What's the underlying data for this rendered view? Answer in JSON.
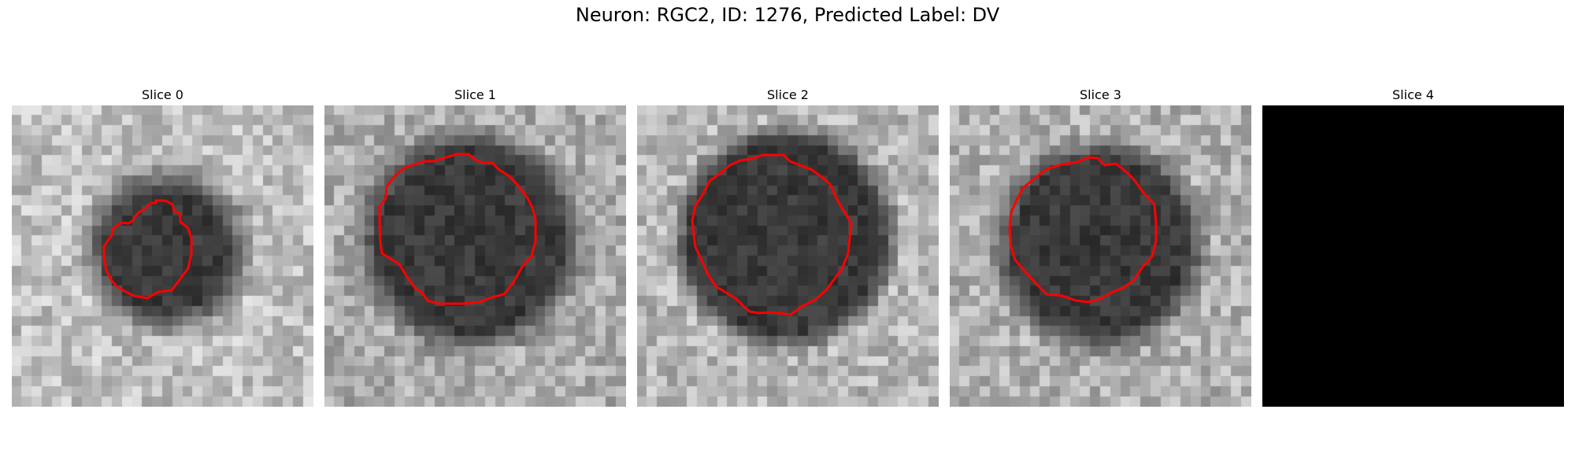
{
  "figure": {
    "title": "Neuron: RGC2, ID: 1276, Predicted Label: DV"
  },
  "panels": [
    {
      "title": "Slice 0",
      "image": "grayscale-microscopy-slice",
      "contour_color": "#ff0000",
      "has_contour": true
    },
    {
      "title": "Slice 1",
      "image": "grayscale-microscopy-slice",
      "contour_color": "#ff0000",
      "has_contour": true
    },
    {
      "title": "Slice 2",
      "image": "grayscale-microscopy-slice",
      "contour_color": "#ff0000",
      "has_contour": true
    },
    {
      "title": "Slice 3",
      "image": "grayscale-microscopy-slice",
      "contour_color": "#ff0000",
      "has_contour": true
    },
    {
      "title": "Slice 4",
      "image": "black-empty-slice",
      "contour_color": "#ff0000",
      "has_contour": false
    }
  ]
}
